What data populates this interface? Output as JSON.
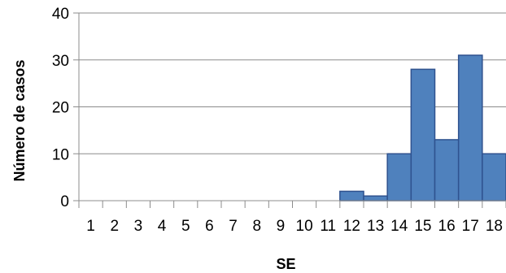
{
  "chart_data": {
    "type": "bar",
    "categories": [
      "1",
      "2",
      "3",
      "4",
      "5",
      "6",
      "7",
      "8",
      "9",
      "10",
      "11",
      "12",
      "13",
      "14",
      "15",
      "16",
      "17",
      "18"
    ],
    "values": [
      0,
      0,
      0,
      0,
      0,
      0,
      0,
      0,
      0,
      0,
      0,
      2,
      1,
      10,
      28,
      13,
      31,
      10
    ],
    "xlabel": "SE",
    "ylabel": "Número de casos",
    "ylim": [
      0,
      40
    ],
    "yticks": [
      0,
      10,
      20,
      30,
      40
    ],
    "grid": true,
    "legend": "none",
    "bar_color": "#4f81bd",
    "bar_edge_color": "#2f528f"
  }
}
